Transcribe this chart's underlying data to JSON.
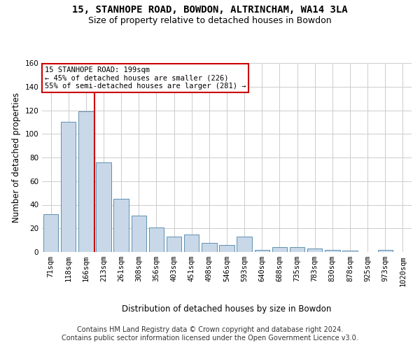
{
  "title_line1": "15, STANHOPE ROAD, BOWDON, ALTRINCHAM, WA14 3LA",
  "title_line2": "Size of property relative to detached houses in Bowdon",
  "xlabel": "Distribution of detached houses by size in Bowdon",
  "ylabel": "Number of detached properties",
  "footer_line1": "Contains HM Land Registry data © Crown copyright and database right 2024.",
  "footer_line2": "Contains public sector information licensed under the Open Government Licence v3.0.",
  "categories": [
    "71sqm",
    "118sqm",
    "166sqm",
    "213sqm",
    "261sqm",
    "308sqm",
    "356sqm",
    "403sqm",
    "451sqm",
    "498sqm",
    "546sqm",
    "593sqm",
    "640sqm",
    "688sqm",
    "735sqm",
    "783sqm",
    "830sqm",
    "878sqm",
    "925sqm",
    "973sqm",
    "1020sqm"
  ],
  "values": [
    32,
    110,
    119,
    76,
    45,
    31,
    21,
    13,
    15,
    8,
    6,
    13,
    2,
    4,
    4,
    3,
    2,
    1,
    0,
    2,
    0
  ],
  "bar_color": "#c8d8e8",
  "bar_edge_color": "#6090b0",
  "vline_x": 2.5,
  "vline_color": "#cc0000",
  "annotation_line1": "15 STANHOPE ROAD: 199sqm",
  "annotation_line2": "← 45% of detached houses are smaller (226)",
  "annotation_line3": "55% of semi-detached houses are larger (281) →",
  "annotation_box_color": "#cc0000",
  "annotation_text_color": "#000000",
  "ylim": [
    0,
    160
  ],
  "yticks": [
    0,
    20,
    40,
    60,
    80,
    100,
    120,
    140,
    160
  ],
  "grid_color": "#cccccc",
  "background_color": "#ffffff",
  "title_fontsize": 10,
  "subtitle_fontsize": 9,
  "axis_label_fontsize": 8.5,
  "tick_fontsize": 7.5,
  "annotation_fontsize": 7.5,
  "footer_fontsize": 7
}
